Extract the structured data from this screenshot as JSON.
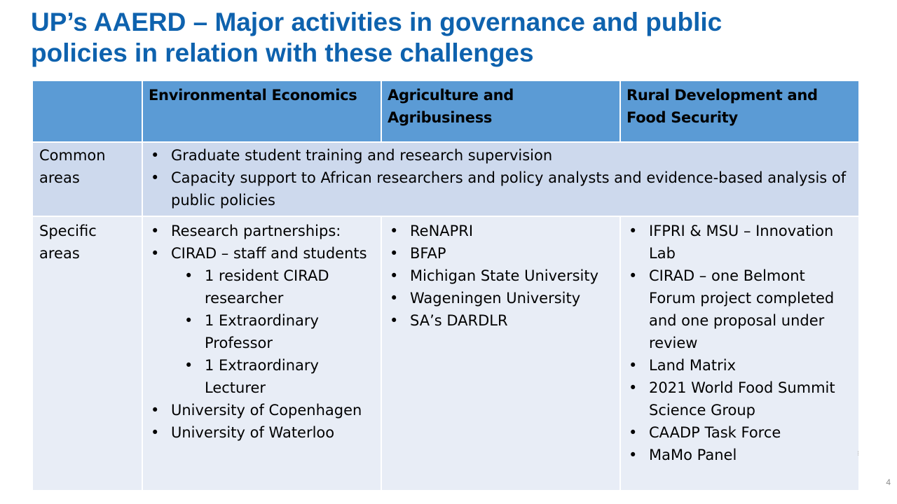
{
  "slide": {
    "title_line1": "UP’s AAERD –  Major activities in governance and public",
    "title_line2": "policies in relation with these challenges",
    "page_number": "4"
  },
  "table": {
    "headers": [
      "",
      "Environmental Economics",
      "Agriculture and Agribusiness",
      "Rural Development and Food Security"
    ],
    "rows": {
      "common": {
        "label": "Common areas",
        "items": [
          "Graduate student training and research supervision",
          "Capacity support to African researchers and policy analysts and evidence-based analysis of public policies"
        ]
      },
      "specific": {
        "label": "Specific areas",
        "env_econ": [
          {
            "text": "Research partnerships:",
            "level": 1
          },
          {
            "text": "CIRAD – staff and students",
            "level": 1
          },
          {
            "text": "1 resident CIRAD researcher",
            "level": 2
          },
          {
            "text": "1 Extraordinary Professor",
            "level": 2
          },
          {
            "text": "1 Extraordinary Lecturer",
            "level": 2
          },
          {
            "text": "University of Copenhagen",
            "level": 1
          },
          {
            "text": "University of Waterloo",
            "level": 1
          }
        ],
        "agri": [
          {
            "text": "ReNAPRI",
            "level": 1
          },
          {
            "text": "BFAP",
            "level": 1
          },
          {
            "text": "Michigan State University",
            "level": 1
          },
          {
            "text": "Wageningen University",
            "level": 1
          },
          {
            "text": "SA’s DARDLR",
            "level": 1
          }
        ],
        "rural": [
          {
            "text": "IFPRI & MSU – Innovation Lab",
            "level": 1
          },
          {
            "text": "CIRAD – one Belmont Forum project completed and one proposal under review",
            "level": 1
          },
          {
            "text": "Land Matrix",
            "level": 1
          },
          {
            "text": "2021 World Food Summit Science Group",
            "level": 1
          },
          {
            "text": "CAADP Task Force",
            "level": 1
          },
          {
            "text": "MaMo Panel",
            "level": 1
          }
        ]
      }
    }
  }
}
